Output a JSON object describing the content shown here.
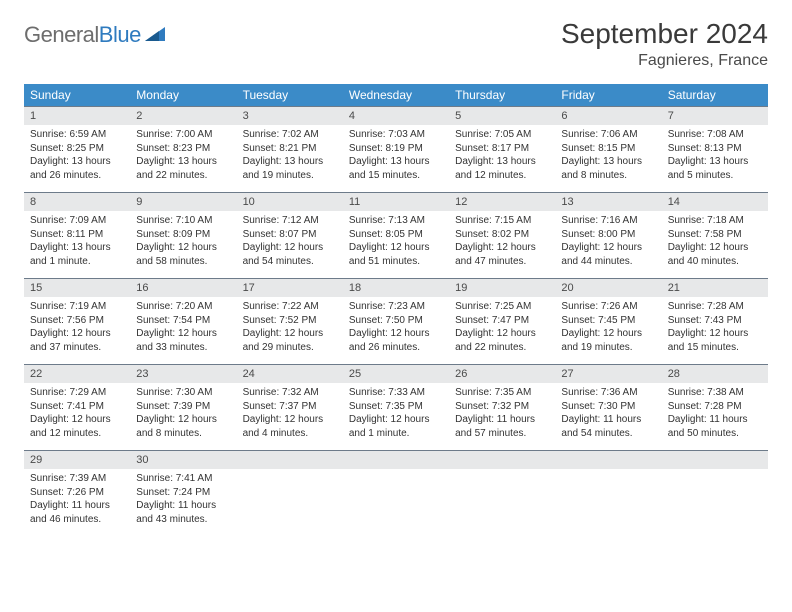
{
  "logo": {
    "part1": "General",
    "part2": "Blue"
  },
  "title": "September 2024",
  "location": "Fagnieres, France",
  "colors": {
    "header_bg": "#3b8bc8",
    "header_text": "#ffffff",
    "daynum_bg": "#e7e8e9",
    "daynum_border": "#6d7b8a",
    "body_text": "#333333",
    "logo_gray": "#6d6d6d",
    "logo_blue": "#2f7bbf"
  },
  "day_headers": [
    "Sunday",
    "Monday",
    "Tuesday",
    "Wednesday",
    "Thursday",
    "Friday",
    "Saturday"
  ],
  "weeks": [
    [
      {
        "n": "1",
        "sr": "Sunrise: 6:59 AM",
        "ss": "Sunset: 8:25 PM",
        "dl": "Daylight: 13 hours and 26 minutes."
      },
      {
        "n": "2",
        "sr": "Sunrise: 7:00 AM",
        "ss": "Sunset: 8:23 PM",
        "dl": "Daylight: 13 hours and 22 minutes."
      },
      {
        "n": "3",
        "sr": "Sunrise: 7:02 AM",
        "ss": "Sunset: 8:21 PM",
        "dl": "Daylight: 13 hours and 19 minutes."
      },
      {
        "n": "4",
        "sr": "Sunrise: 7:03 AM",
        "ss": "Sunset: 8:19 PM",
        "dl": "Daylight: 13 hours and 15 minutes."
      },
      {
        "n": "5",
        "sr": "Sunrise: 7:05 AM",
        "ss": "Sunset: 8:17 PM",
        "dl": "Daylight: 13 hours and 12 minutes."
      },
      {
        "n": "6",
        "sr": "Sunrise: 7:06 AM",
        "ss": "Sunset: 8:15 PM",
        "dl": "Daylight: 13 hours and 8 minutes."
      },
      {
        "n": "7",
        "sr": "Sunrise: 7:08 AM",
        "ss": "Sunset: 8:13 PM",
        "dl": "Daylight: 13 hours and 5 minutes."
      }
    ],
    [
      {
        "n": "8",
        "sr": "Sunrise: 7:09 AM",
        "ss": "Sunset: 8:11 PM",
        "dl": "Daylight: 13 hours and 1 minute."
      },
      {
        "n": "9",
        "sr": "Sunrise: 7:10 AM",
        "ss": "Sunset: 8:09 PM",
        "dl": "Daylight: 12 hours and 58 minutes."
      },
      {
        "n": "10",
        "sr": "Sunrise: 7:12 AM",
        "ss": "Sunset: 8:07 PM",
        "dl": "Daylight: 12 hours and 54 minutes."
      },
      {
        "n": "11",
        "sr": "Sunrise: 7:13 AM",
        "ss": "Sunset: 8:05 PM",
        "dl": "Daylight: 12 hours and 51 minutes."
      },
      {
        "n": "12",
        "sr": "Sunrise: 7:15 AM",
        "ss": "Sunset: 8:02 PM",
        "dl": "Daylight: 12 hours and 47 minutes."
      },
      {
        "n": "13",
        "sr": "Sunrise: 7:16 AM",
        "ss": "Sunset: 8:00 PM",
        "dl": "Daylight: 12 hours and 44 minutes."
      },
      {
        "n": "14",
        "sr": "Sunrise: 7:18 AM",
        "ss": "Sunset: 7:58 PM",
        "dl": "Daylight: 12 hours and 40 minutes."
      }
    ],
    [
      {
        "n": "15",
        "sr": "Sunrise: 7:19 AM",
        "ss": "Sunset: 7:56 PM",
        "dl": "Daylight: 12 hours and 37 minutes."
      },
      {
        "n": "16",
        "sr": "Sunrise: 7:20 AM",
        "ss": "Sunset: 7:54 PM",
        "dl": "Daylight: 12 hours and 33 minutes."
      },
      {
        "n": "17",
        "sr": "Sunrise: 7:22 AM",
        "ss": "Sunset: 7:52 PM",
        "dl": "Daylight: 12 hours and 29 minutes."
      },
      {
        "n": "18",
        "sr": "Sunrise: 7:23 AM",
        "ss": "Sunset: 7:50 PM",
        "dl": "Daylight: 12 hours and 26 minutes."
      },
      {
        "n": "19",
        "sr": "Sunrise: 7:25 AM",
        "ss": "Sunset: 7:47 PM",
        "dl": "Daylight: 12 hours and 22 minutes."
      },
      {
        "n": "20",
        "sr": "Sunrise: 7:26 AM",
        "ss": "Sunset: 7:45 PM",
        "dl": "Daylight: 12 hours and 19 minutes."
      },
      {
        "n": "21",
        "sr": "Sunrise: 7:28 AM",
        "ss": "Sunset: 7:43 PM",
        "dl": "Daylight: 12 hours and 15 minutes."
      }
    ],
    [
      {
        "n": "22",
        "sr": "Sunrise: 7:29 AM",
        "ss": "Sunset: 7:41 PM",
        "dl": "Daylight: 12 hours and 12 minutes."
      },
      {
        "n": "23",
        "sr": "Sunrise: 7:30 AM",
        "ss": "Sunset: 7:39 PM",
        "dl": "Daylight: 12 hours and 8 minutes."
      },
      {
        "n": "24",
        "sr": "Sunrise: 7:32 AM",
        "ss": "Sunset: 7:37 PM",
        "dl": "Daylight: 12 hours and 4 minutes."
      },
      {
        "n": "25",
        "sr": "Sunrise: 7:33 AM",
        "ss": "Sunset: 7:35 PM",
        "dl": "Daylight: 12 hours and 1 minute."
      },
      {
        "n": "26",
        "sr": "Sunrise: 7:35 AM",
        "ss": "Sunset: 7:32 PM",
        "dl": "Daylight: 11 hours and 57 minutes."
      },
      {
        "n": "27",
        "sr": "Sunrise: 7:36 AM",
        "ss": "Sunset: 7:30 PM",
        "dl": "Daylight: 11 hours and 54 minutes."
      },
      {
        "n": "28",
        "sr": "Sunrise: 7:38 AM",
        "ss": "Sunset: 7:28 PM",
        "dl": "Daylight: 11 hours and 50 minutes."
      }
    ],
    [
      {
        "n": "29",
        "sr": "Sunrise: 7:39 AM",
        "ss": "Sunset: 7:26 PM",
        "dl": "Daylight: 11 hours and 46 minutes."
      },
      {
        "n": "30",
        "sr": "Sunrise: 7:41 AM",
        "ss": "Sunset: 7:24 PM",
        "dl": "Daylight: 11 hours and 43 minutes."
      },
      null,
      null,
      null,
      null,
      null
    ]
  ]
}
